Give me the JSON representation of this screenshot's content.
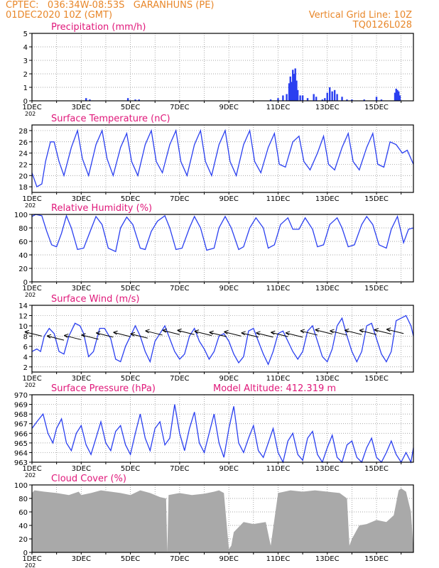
{
  "header": {
    "line1": "CPTEC:   036:34W-08:53S   GARANHUNS (PE)",
    "line2": "01DEC2020 10Z (GMT)",
    "grid_note": "Vertical Grid Line: 10Z",
    "code": "TQ0126L028"
  },
  "colors": {
    "header": "#e8872a",
    "title": "#e0187a",
    "line": "#2a3ff0",
    "bar": "#2a3ff0",
    "cloud": "#a9a9a9",
    "grid": "#888888"
  },
  "x_ticks": [
    "1DEC",
    "3DEC",
    "5DEC",
    "7DEC",
    "9DEC",
    "11DEC",
    "13DEC",
    "15DEC"
  ],
  "truncated_label": "202",
  "chart_data": [
    {
      "id": "precip",
      "type": "bar",
      "title": "Precipitation (mm/h)",
      "ylim": [
        0,
        5
      ],
      "yticks": [
        0,
        1,
        2,
        3,
        4,
        5
      ],
      "x_days": [
        1,
        16.5
      ],
      "x": [
        3.2,
        3.35,
        4.9,
        5.2,
        5.35,
        10.7,
        11.0,
        11.2,
        11.35,
        11.45,
        11.5,
        11.55,
        11.6,
        11.65,
        11.7,
        11.75,
        11.8,
        11.9,
        12.0,
        12.2,
        12.45,
        12.55,
        12.8,
        12.9,
        13.0,
        13.1,
        13.2,
        13.3,
        13.4,
        13.6,
        13.8,
        14.0,
        14.5,
        15.0,
        15.2,
        15.75,
        15.8,
        15.85,
        15.9,
        15.95
      ],
      "values": [
        0.2,
        0.1,
        0.2,
        0.1,
        0.1,
        0.1,
        0.2,
        0.4,
        0.5,
        1.3,
        1.8,
        1.4,
        2.3,
        2.0,
        2.4,
        1.5,
        0.8,
        0.4,
        0.4,
        0.2,
        0.5,
        0.3,
        0.1,
        0.2,
        0.6,
        1.0,
        0.7,
        0.8,
        0.5,
        0.3,
        0.1,
        0.1,
        0.1,
        0.3,
        0.1,
        0.6,
        0.9,
        0.8,
        0.7,
        0.4
      ]
    },
    {
      "id": "temp",
      "type": "line",
      "title": "Surface Temperature (nC)",
      "ylim": [
        17,
        29
      ],
      "yticks": [
        18,
        20,
        22,
        24,
        26,
        28
      ],
      "x_days": [
        1,
        16.5
      ],
      "x": [
        1.0,
        1.2,
        1.4,
        1.55,
        1.75,
        1.9,
        2.1,
        2.3,
        2.6,
        2.85,
        3.05,
        3.3,
        3.6,
        3.85,
        4.05,
        4.3,
        4.6,
        4.85,
        5.05,
        5.3,
        5.6,
        5.85,
        6.05,
        6.3,
        6.6,
        6.85,
        7.05,
        7.3,
        7.6,
        7.85,
        8.05,
        8.3,
        8.6,
        8.85,
        9.05,
        9.3,
        9.6,
        9.85,
        10.05,
        10.3,
        10.6,
        10.85,
        11.05,
        11.3,
        11.6,
        11.85,
        12.05,
        12.3,
        12.6,
        12.85,
        13.05,
        13.3,
        13.6,
        13.85,
        14.05,
        14.3,
        14.6,
        14.85,
        15.05,
        15.3,
        15.55,
        15.8,
        16.05,
        16.25,
        16.5
      ],
      "y": [
        20.5,
        18.0,
        18.5,
        22.5,
        26.0,
        26.0,
        22.5,
        20.0,
        25.0,
        28.0,
        23.0,
        20.0,
        25.5,
        28.0,
        23.0,
        20.0,
        25.0,
        27.5,
        22.5,
        20.0,
        25.5,
        28.0,
        22.5,
        20.5,
        25.5,
        28.0,
        22.5,
        20.0,
        25.5,
        28.0,
        22.5,
        20.0,
        25.5,
        28.0,
        22.5,
        20.0,
        25.5,
        28.0,
        22.5,
        20.5,
        25.0,
        27.5,
        22.0,
        21.5,
        26.0,
        27.0,
        22.5,
        21.0,
        24.0,
        27.0,
        22.0,
        21.0,
        25.0,
        27.5,
        22.5,
        21.0,
        25.0,
        27.5,
        22.0,
        21.5,
        26.0,
        25.5,
        24.0,
        24.5,
        22.0
      ]
    },
    {
      "id": "rh",
      "type": "line",
      "title": "Relative Humidity (%)",
      "ylim": [
        0,
        100
      ],
      "yticks": [
        0,
        20,
        40,
        60,
        80,
        100
      ],
      "x_days": [
        1,
        16.5
      ],
      "x": [
        1.0,
        1.15,
        1.4,
        1.6,
        1.8,
        2.0,
        2.2,
        2.4,
        2.6,
        2.85,
        3.1,
        3.4,
        3.6,
        3.85,
        4.1,
        4.4,
        4.6,
        4.85,
        5.1,
        5.4,
        5.6,
        5.85,
        6.1,
        6.4,
        6.6,
        6.85,
        7.1,
        7.4,
        7.6,
        7.85,
        8.1,
        8.4,
        8.6,
        8.85,
        9.1,
        9.4,
        9.6,
        9.85,
        10.1,
        10.4,
        10.6,
        10.85,
        11.1,
        11.4,
        11.6,
        11.85,
        12.1,
        12.4,
        12.6,
        12.85,
        13.1,
        13.4,
        13.6,
        13.85,
        14.1,
        14.4,
        14.6,
        14.85,
        15.1,
        15.4,
        15.6,
        15.85,
        16.1,
        16.3,
        16.5
      ],
      "y": [
        97,
        100,
        98,
        75,
        55,
        52,
        72,
        98,
        80,
        48,
        50,
        78,
        97,
        85,
        50,
        45,
        80,
        96,
        85,
        50,
        48,
        75,
        90,
        98,
        80,
        48,
        50,
        80,
        97,
        80,
        47,
        50,
        80,
        97,
        80,
        48,
        52,
        80,
        95,
        80,
        50,
        55,
        85,
        95,
        78,
        78,
        95,
        78,
        52,
        55,
        85,
        95,
        80,
        52,
        55,
        85,
        97,
        85,
        55,
        50,
        78,
        97,
        58,
        78,
        80
      ]
    },
    {
      "id": "wind",
      "type": "line",
      "title": "Surface Wind (m/s)",
      "ylim": [
        1,
        14
      ],
      "yticks": [
        2,
        4,
        6,
        8,
        10,
        12,
        14
      ],
      "x_days": [
        1,
        16.5
      ],
      "x": [
        1.0,
        1.2,
        1.35,
        1.5,
        1.7,
        1.9,
        2.1,
        2.3,
        2.5,
        2.75,
        2.95,
        3.1,
        3.3,
        3.5,
        3.75,
        3.95,
        4.2,
        4.4,
        4.6,
        4.8,
        5.0,
        5.2,
        5.4,
        5.6,
        5.8,
        6.0,
        6.2,
        6.4,
        6.6,
        6.8,
        7.0,
        7.2,
        7.4,
        7.6,
        7.8,
        8.0,
        8.2,
        8.4,
        8.6,
        8.8,
        9.0,
        9.2,
        9.4,
        9.6,
        9.8,
        10.0,
        10.2,
        10.4,
        10.6,
        10.8,
        11.0,
        11.2,
        11.4,
        11.6,
        11.8,
        12.0,
        12.2,
        12.4,
        12.6,
        12.8,
        13.0,
        13.2,
        13.4,
        13.6,
        13.8,
        14.0,
        14.2,
        14.4,
        14.6,
        14.8,
        15.0,
        15.2,
        15.4,
        15.6,
        15.8,
        16.0,
        16.2,
        16.4,
        16.5
      ],
      "y": [
        5.0,
        5.5,
        5.0,
        8.0,
        9.5,
        8.5,
        5.0,
        4.5,
        8.0,
        10.5,
        10.0,
        8.5,
        4.0,
        5.0,
        9.5,
        9.5,
        7.5,
        3.5,
        3.0,
        6.0,
        8.0,
        10.0,
        8.0,
        5.0,
        3.0,
        7.0,
        8.5,
        10.0,
        7.5,
        5.0,
        3.5,
        4.5,
        8.0,
        9.5,
        7.0,
        5.5,
        3.5,
        5.0,
        8.0,
        8.5,
        7.0,
        4.5,
        2.8,
        4.0,
        9.0,
        9.5,
        7.0,
        4.5,
        2.5,
        5.0,
        8.5,
        9.0,
        7.0,
        5.0,
        3.5,
        5.0,
        9.0,
        10.0,
        7.0,
        4.0,
        3.0,
        5.5,
        10.0,
        11.5,
        8.0,
        5.0,
        3.0,
        5.0,
        10.0,
        10.5,
        7.5,
        4.5,
        3.0,
        5.0,
        11.0,
        11.5,
        12.0,
        10.0,
        8.0
      ],
      "vectors": {
        "x": [
          1.4,
          2.3,
          3.0,
          3.7,
          4.3,
          5.0,
          5.7,
          6.3,
          7.0,
          7.6,
          8.3,
          8.9,
          9.5,
          10.2,
          10.8,
          11.4,
          12.0,
          12.6,
          13.2,
          13.8,
          14.4,
          15.0,
          15.6,
          16.1
        ],
        "speed": [
          8.0,
          7.2,
          7.3,
          7.4,
          7.8,
          7.9,
          7.6,
          8.2,
          8.3,
          8.3,
          8.1,
          7.9,
          8.0,
          7.8,
          7.8,
          7.9,
          7.8,
          8.2,
          8.4,
          8.2,
          8.3,
          8.3,
          8.4,
          8.5
        ]
      }
    },
    {
      "id": "pressure",
      "type": "line",
      "title": "Surface Pressure (hPa)",
      "annotation": "Model Altitude: 412.319  m",
      "ylim": [
        963,
        970
      ],
      "yticks": [
        963,
        964,
        965,
        966,
        967,
        968,
        969,
        970
      ],
      "x_days": [
        1,
        16.5
      ],
      "x": [
        1.0,
        1.2,
        1.45,
        1.65,
        1.85,
        2.0,
        2.2,
        2.4,
        2.6,
        2.8,
        3.0,
        3.2,
        3.4,
        3.6,
        3.8,
        4.0,
        4.2,
        4.4,
        4.6,
        4.8,
        5.0,
        5.2,
        5.4,
        5.6,
        5.8,
        6.0,
        6.2,
        6.4,
        6.6,
        6.8,
        7.0,
        7.2,
        7.4,
        7.6,
        7.8,
        8.0,
        8.2,
        8.4,
        8.6,
        8.8,
        9.0,
        9.2,
        9.4,
        9.6,
        9.8,
        10.0,
        10.2,
        10.4,
        10.6,
        10.8,
        11.0,
        11.2,
        11.4,
        11.6,
        11.8,
        12.0,
        12.2,
        12.4,
        12.6,
        12.8,
        13.0,
        13.2,
        13.4,
        13.6,
        13.8,
        14.0,
        14.2,
        14.4,
        14.6,
        14.8,
        15.0,
        15.2,
        15.4,
        15.6,
        15.8,
        16.0,
        16.2,
        16.4,
        16.5
      ],
      "y": [
        966.5,
        967.2,
        968.0,
        966.0,
        965.0,
        966.5,
        967.5,
        965.0,
        964.2,
        966.0,
        966.8,
        964.8,
        963.8,
        965.5,
        967.2,
        965.0,
        964.2,
        966.2,
        966.8,
        964.8,
        963.8,
        966.0,
        968.0,
        965.5,
        964.2,
        966.5,
        967.2,
        964.8,
        965.5,
        969.0,
        966.0,
        964.2,
        966.5,
        968.2,
        965.0,
        964.0,
        966.0,
        968.0,
        965.0,
        963.5,
        966.5,
        968.8,
        965.0,
        964.0,
        965.5,
        966.8,
        964.2,
        963.5,
        965.0,
        966.5,
        964.0,
        963.0,
        965.2,
        966.0,
        963.8,
        963.2,
        965.5,
        966.2,
        963.8,
        963.0,
        964.5,
        965.8,
        963.5,
        963.0,
        964.8,
        965.2,
        963.5,
        963.0,
        964.5,
        965.5,
        963.5,
        963.0,
        964.0,
        965.2,
        963.8,
        963.0,
        964.0,
        963.0,
        964.5
      ]
    },
    {
      "id": "cloud",
      "type": "area",
      "title": "Cloud Cover (%)",
      "ylim": [
        0,
        100
      ],
      "yticks": [
        0,
        20,
        40,
        60,
        80,
        100
      ],
      "x_days": [
        1,
        16.5
      ],
      "x": [
        1.0,
        1.1,
        1.5,
        2.0,
        2.5,
        2.9,
        3.0,
        3.4,
        3.8,
        4.2,
        4.6,
        5.0,
        5.4,
        5.8,
        6.2,
        6.45,
        6.5,
        6.55,
        7.0,
        7.5,
        8.0,
        8.4,
        8.6,
        8.8,
        9.0,
        9.1,
        9.2,
        9.6,
        10.0,
        10.5,
        10.7,
        11.0,
        11.5,
        12.0,
        12.5,
        13.0,
        13.5,
        13.8,
        13.9,
        14.0,
        14.3,
        14.6,
        15.0,
        15.4,
        15.7,
        15.9,
        16.0,
        16.2,
        16.4,
        16.5
      ],
      "y": [
        88,
        92,
        90,
        88,
        85,
        90,
        85,
        88,
        92,
        90,
        88,
        85,
        92,
        88,
        82,
        80,
        0,
        85,
        88,
        85,
        87,
        90,
        92,
        88,
        5,
        10,
        30,
        45,
        42,
        45,
        10,
        88,
        92,
        90,
        92,
        90,
        88,
        80,
        10,
        20,
        40,
        42,
        48,
        45,
        55,
        92,
        95,
        90,
        60,
        5
      ]
    }
  ]
}
